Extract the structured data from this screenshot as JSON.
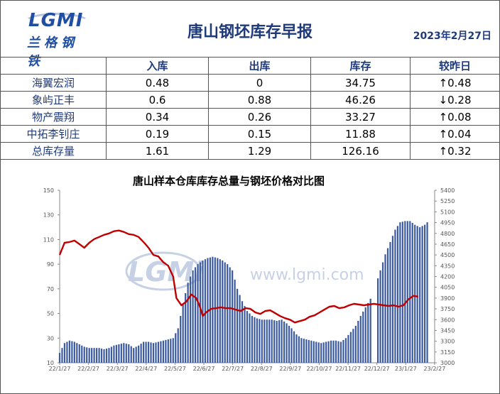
{
  "header": {
    "logo_text": "LGMI",
    "logo_cn": "兰格钢铁",
    "title": "唐山钢坯库存早报",
    "date": "2023年2月27日"
  },
  "table": {
    "columns": [
      "",
      "入库",
      "出库",
      "库存",
      "较昨日"
    ],
    "rows": [
      {
        "name": "海翼宏润",
        "in": "0.48",
        "out": "0",
        "stock": "34.75",
        "change": "↑0.48",
        "dir": "up"
      },
      {
        "name": "象屿正丰",
        "in": "0.6",
        "out": "0.88",
        "stock": "46.26",
        "change": "↓0.28",
        "dir": "down"
      },
      {
        "name": "物产震翔",
        "in": "0.34",
        "out": "0.26",
        "stock": "33.27",
        "change": "↑0.08",
        "dir": "up"
      },
      {
        "name": "中拓李钊庄",
        "in": "0.19",
        "out": "0.15",
        "stock": "11.88",
        "change": "↑0.04",
        "dir": "up"
      },
      {
        "name": "总库存量",
        "in": "1.61",
        "out": "1.29",
        "stock": "126.16",
        "change": "↑0.32",
        "dir": "up"
      }
    ]
  },
  "watermark": {
    "logo": "LGMi",
    "url": "www.lgmi.com"
  },
  "chart_data": {
    "type": "bar",
    "title": "唐山样本仓库库存总量与钢坯价格对比图",
    "x_ticks": [
      "22/1/27",
      "22/2/27",
      "22/3/27",
      "22/4/27",
      "22/5/27",
      "22/6/27",
      "22/7/27",
      "22/8/27",
      "22/9/27",
      "22/10/27",
      "22/11/27",
      "22/12/27",
      "23/1/27",
      "23/2/27"
    ],
    "left_axis": {
      "min": 10,
      "max": 150,
      "ticks": [
        10,
        30,
        50,
        70,
        90,
        110,
        130,
        150
      ]
    },
    "right_axis": {
      "min": 3000,
      "max": 5400,
      "ticks": [
        3000,
        3150,
        3300,
        3450,
        3600,
        3750,
        3900,
        4050,
        4200,
        4350,
        4500,
        4650,
        4800,
        4950,
        5100,
        5250,
        5400
      ]
    },
    "colors": {
      "bars": "#3b5aa0",
      "line": "#c00000"
    },
    "series": [
      {
        "kind": "bar",
        "axis": "left",
        "points": [
          [
            0,
            18
          ],
          [
            6,
            26
          ],
          [
            12,
            28
          ],
          [
            18,
            27
          ],
          [
            24,
            25
          ],
          [
            30,
            23
          ],
          [
            36,
            22
          ],
          [
            42,
            22
          ],
          [
            48,
            22
          ],
          [
            54,
            21
          ],
          [
            60,
            22
          ],
          [
            66,
            24
          ],
          [
            72,
            25
          ],
          [
            78,
            26
          ],
          [
            84,
            25
          ],
          [
            90,
            22
          ],
          [
            96,
            24
          ],
          [
            102,
            27
          ],
          [
            108,
            27
          ],
          [
            114,
            26
          ],
          [
            120,
            27
          ],
          [
            126,
            28
          ],
          [
            132,
            29
          ],
          [
            138,
            30
          ],
          [
            144,
            38
          ],
          [
            150,
            58
          ],
          [
            156,
            75
          ],
          [
            162,
            85
          ],
          [
            168,
            90
          ],
          [
            174,
            93
          ],
          [
            180,
            95
          ],
          [
            186,
            96
          ],
          [
            192,
            95
          ],
          [
            198,
            93
          ],
          [
            204,
            90
          ],
          [
            210,
            85
          ],
          [
            216,
            70
          ],
          [
            222,
            60
          ],
          [
            228,
            52
          ],
          [
            234,
            48
          ],
          [
            240,
            46
          ],
          [
            246,
            45
          ],
          [
            252,
            45
          ],
          [
            258,
            45
          ],
          [
            264,
            44
          ],
          [
            270,
            45
          ],
          [
            276,
            42
          ],
          [
            282,
            38
          ],
          [
            288,
            33
          ],
          [
            294,
            30
          ],
          [
            300,
            29
          ],
          [
            306,
            28
          ],
          [
            312,
            27
          ],
          [
            318,
            26
          ],
          [
            324,
            27
          ],
          [
            330,
            28
          ],
          [
            336,
            28
          ],
          [
            342,
            27
          ],
          [
            348,
            30
          ],
          [
            354,
            35
          ],
          [
            360,
            40
          ],
          [
            366,
            48
          ],
          [
            372,
            55
          ],
          [
            378,
            62
          ],
          [
            384,
            72
          ],
          [
            390,
            85
          ],
          [
            396,
            98
          ],
          [
            402,
            108
          ],
          [
            408,
            118
          ],
          [
            414,
            124
          ],
          [
            420,
            125
          ],
          [
            426,
            125
          ],
          [
            432,
            122
          ],
          [
            438,
            120
          ],
          [
            444,
            122
          ],
          [
            450,
            126
          ]
        ]
      },
      {
        "kind": "line",
        "axis": "right",
        "points": [
          [
            0,
            4500
          ],
          [
            6,
            4670
          ],
          [
            12,
            4680
          ],
          [
            18,
            4700
          ],
          [
            24,
            4650
          ],
          [
            30,
            4600
          ],
          [
            36,
            4670
          ],
          [
            42,
            4720
          ],
          [
            48,
            4750
          ],
          [
            54,
            4780
          ],
          [
            60,
            4800
          ],
          [
            66,
            4830
          ],
          [
            72,
            4840
          ],
          [
            78,
            4820
          ],
          [
            84,
            4790
          ],
          [
            90,
            4780
          ],
          [
            96,
            4750
          ],
          [
            102,
            4680
          ],
          [
            108,
            4600
          ],
          [
            114,
            4500
          ],
          [
            120,
            4480
          ],
          [
            126,
            4400
          ],
          [
            132,
            4350
          ],
          [
            138,
            4200
          ],
          [
            142,
            3900
          ],
          [
            148,
            3800
          ],
          [
            154,
            3850
          ],
          [
            160,
            3950
          ],
          [
            166,
            3900
          ],
          [
            170,
            3800
          ],
          [
            174,
            3650
          ],
          [
            178,
            3700
          ],
          [
            184,
            3750
          ],
          [
            190,
            3760
          ],
          [
            196,
            3770
          ],
          [
            202,
            3760
          ],
          [
            208,
            3760
          ],
          [
            214,
            3740
          ],
          [
            220,
            3720
          ],
          [
            226,
            3760
          ],
          [
            232,
            3750
          ],
          [
            238,
            3700
          ],
          [
            244,
            3680
          ],
          [
            250,
            3720
          ],
          [
            256,
            3730
          ],
          [
            262,
            3690
          ],
          [
            268,
            3650
          ],
          [
            274,
            3620
          ],
          [
            280,
            3600
          ],
          [
            286,
            3560
          ],
          [
            292,
            3580
          ],
          [
            298,
            3600
          ],
          [
            304,
            3640
          ],
          [
            310,
            3660
          ],
          [
            316,
            3700
          ],
          [
            322,
            3740
          ],
          [
            328,
            3780
          ],
          [
            334,
            3790
          ],
          [
            340,
            3760
          ],
          [
            346,
            3770
          ],
          [
            352,
            3800
          ],
          [
            358,
            3820
          ],
          [
            364,
            3810
          ],
          [
            370,
            3800
          ],
          [
            376,
            3810
          ],
          [
            382,
            3820
          ],
          [
            388,
            3810
          ],
          [
            394,
            3800
          ],
          [
            400,
            3790
          ],
          [
            406,
            3800
          ],
          [
            412,
            3780
          ],
          [
            418,
            3800
          ],
          [
            424,
            3880
          ],
          [
            430,
            3930
          ],
          [
            436,
            3920
          ]
        ]
      }
    ]
  }
}
